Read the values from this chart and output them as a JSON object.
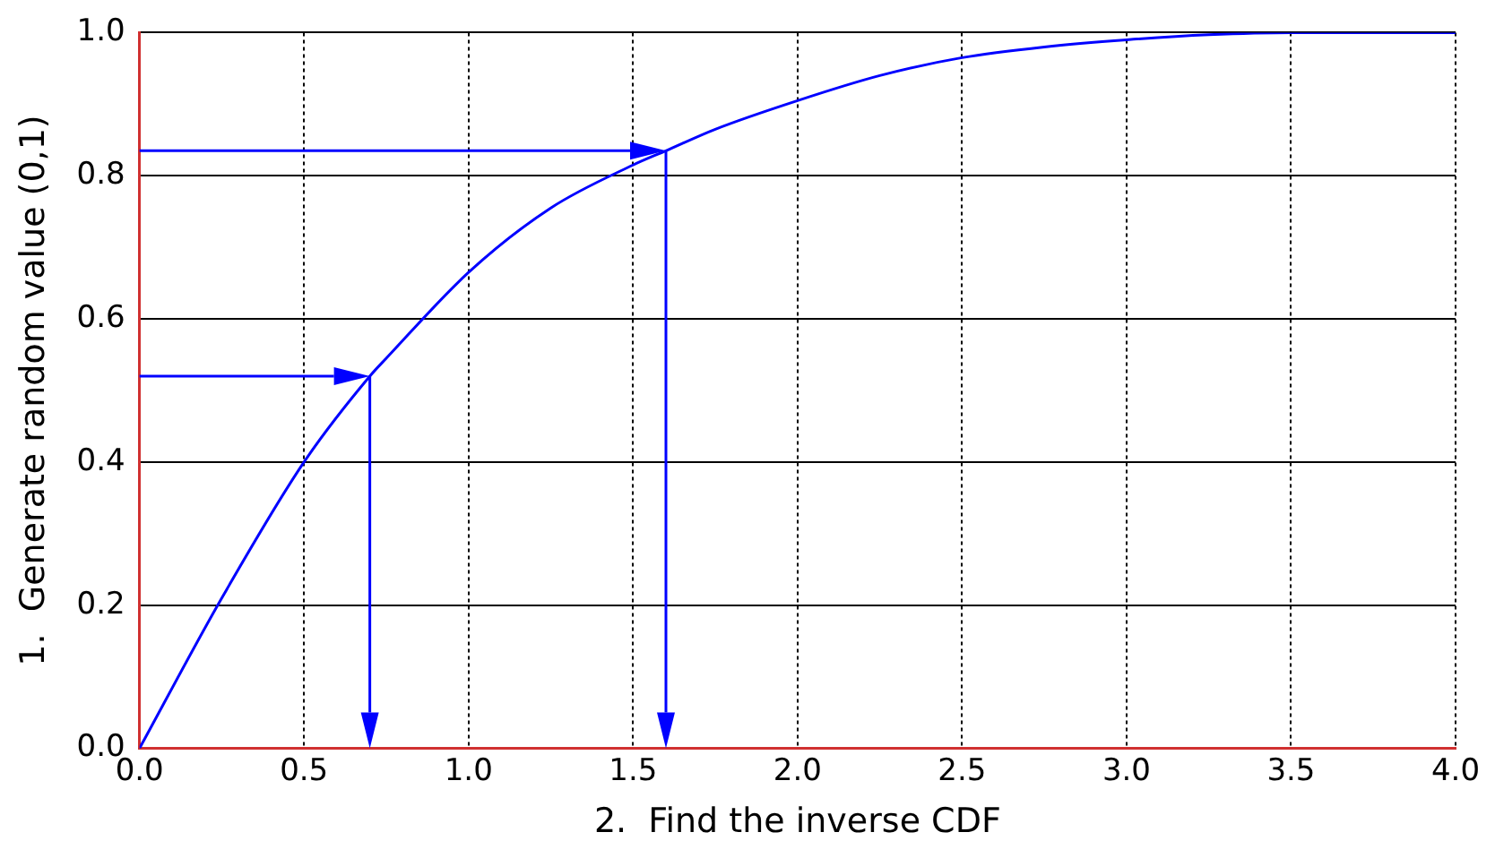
{
  "chart_data": {
    "type": "line",
    "xlabel": "2.  Find the inverse CDF",
    "ylabel": "1.  Generate random value (0,1)",
    "xlim": [
      0,
      4
    ],
    "xticks": [
      {
        "value": 0,
        "label": "0.0"
      },
      {
        "value": 0.5,
        "label": "0.5"
      },
      {
        "value": 1,
        "label": "1.0"
      },
      {
        "value": 1.5,
        "label": "1.5"
      },
      {
        "value": 2,
        "label": "2.0"
      },
      {
        "value": 2.5,
        "label": "2.5"
      },
      {
        "value": 3,
        "label": "3.0"
      },
      {
        "value": 3.5,
        "label": "3.5"
      },
      {
        "value": 4,
        "label": "4.0"
      }
    ],
    "ylim": [
      0,
      1
    ],
    "yticks": [
      {
        "value": 0,
        "label": "0.0"
      },
      {
        "value": 0.2,
        "label": "0.2"
      },
      {
        "value": 0.4,
        "label": "0.4"
      },
      {
        "value": 0.6,
        "label": "0.6"
      },
      {
        "value": 0.8,
        "label": "0.8"
      },
      {
        "value": 1,
        "label": "1.0"
      }
    ],
    "grid": true,
    "legend": false,
    "marker": "none",
    "series": [
      {
        "color": "#0000ff",
        "x": [
          0,
          0.25,
          0.5,
          0.7,
          0.75,
          1.0,
          1.25,
          1.5,
          1.6,
          1.75,
          2.0,
          2.25,
          2.5,
          2.75,
          3.0,
          3.25,
          3.5,
          3.75,
          4.0
        ],
        "values": [
          0,
          0.21,
          0.4,
          0.52,
          0.545,
          0.665,
          0.755,
          0.815,
          0.835,
          0.865,
          0.905,
          0.94,
          0.965,
          0.98,
          0.99,
          0.997,
          1.0,
          1.0,
          1.0
        ]
      }
    ]
  }
}
